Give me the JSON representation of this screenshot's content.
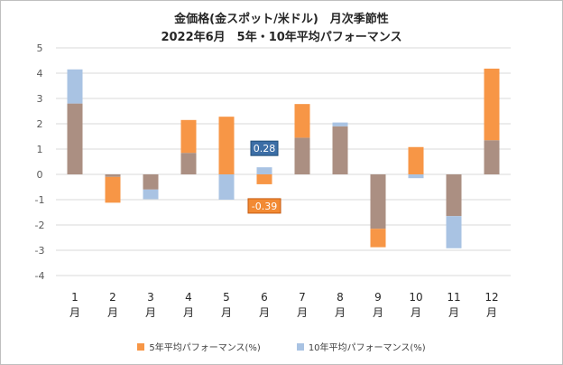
{
  "chart_data": {
    "type": "bar",
    "title_line1": "金価格(金スポット/米ドル)　月次季節性",
    "title_line2": "2022年6月　5年・10年平均パフォーマンス",
    "categories": [
      "1",
      "2",
      "3",
      "4",
      "5",
      "6",
      "7",
      "8",
      "9",
      "10",
      "11",
      "12"
    ],
    "category_suffix": "月",
    "series": [
      {
        "name": "5年平均パフォーマンス(%)",
        "color": "#f79646",
        "values": [
          2.8,
          -1.12,
          -0.6,
          2.15,
          2.28,
          -0.39,
          2.78,
          1.9,
          -2.88,
          1.08,
          -1.65,
          4.18
        ]
      },
      {
        "name": "10年平均パフォーマンス(%)",
        "color": "#a9c3e3",
        "values": [
          4.15,
          -0.1,
          -0.98,
          0.85,
          -1.0,
          0.28,
          1.45,
          2.05,
          -2.15,
          -0.15,
          -2.92,
          1.35
        ]
      }
    ],
    "overlap_color": "#ab8f82",
    "yticks": [
      "5",
      "4",
      "3",
      "2",
      "1",
      "0",
      "-1",
      "-2",
      "-3",
      "-4"
    ],
    "ylim": [
      -4,
      5
    ],
    "grid": true,
    "legend_position": "bottom",
    "annotations": [
      {
        "category": "6",
        "text": "0.28",
        "series": "10年平均パフォーマンス(%)"
      },
      {
        "category": "6",
        "text": "-0.39",
        "series": "5年平均パフォーマンス(%)"
      }
    ]
  }
}
